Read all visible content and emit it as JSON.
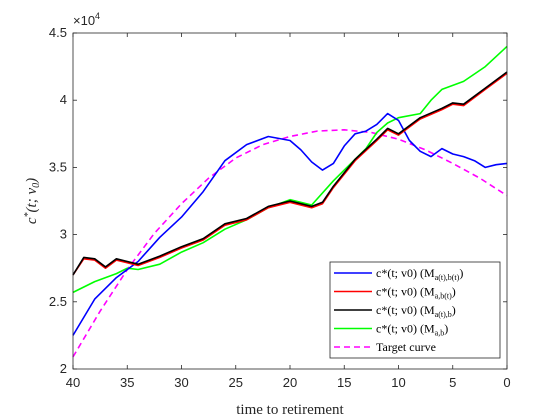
{
  "chart_data": {
    "type": "line",
    "xlabel": "time to retirement",
    "ylabel": "c*(t; v0)",
    "xlim": [
      40,
      0
    ],
    "x_reversed": true,
    "ylim": [
      20000,
      45000
    ],
    "x_ticks": [
      40,
      35,
      30,
      25,
      20,
      15,
      10,
      5,
      0
    ],
    "y_ticks": [
      20000,
      25000,
      30000,
      35000,
      40000,
      45000
    ],
    "y_tick_labels": [
      "2",
      "2.5",
      "3",
      "3.5",
      "4",
      "4.5"
    ],
    "y_multiplier": "×10",
    "y_multiplier_exp": "4",
    "grid": false,
    "legend_position": "bottom-right",
    "series": [
      {
        "name": "c*(t;v0) (M_{a(t),b(t)})",
        "legend_main": "c*(t; v0) (M",
        "legend_sub": "a(t),b(t)",
        "legend_close": ")",
        "color": "#0000ff",
        "dash": "",
        "x": [
          40,
          38,
          36,
          34,
          32,
          30,
          28,
          26,
          24,
          22,
          20,
          19,
          18,
          17,
          16,
          15,
          14,
          13,
          12,
          11,
          10,
          9,
          8,
          7,
          6,
          5,
          4,
          3,
          2,
          1,
          0
        ],
        "values": [
          22500,
          25200,
          26800,
          28000,
          29800,
          31300,
          33200,
          35500,
          36700,
          37300,
          37000,
          36300,
          35400,
          34800,
          35300,
          36600,
          37500,
          37700,
          38200,
          39000,
          38500,
          37000,
          36200,
          35800,
          36400,
          36000,
          35800,
          35500,
          35000,
          35200,
          35300
        ]
      },
      {
        "name": "c*(t;v0) (M_{a,b(t)})",
        "legend_main": "c*(t; v0) (M",
        "legend_sub": "a,b(t)",
        "legend_close": ")",
        "color": "#ff0000",
        "dash": "",
        "x": [
          40,
          39,
          38,
          37,
          36,
          34,
          32,
          30,
          28,
          26,
          24,
          22,
          20,
          18,
          17,
          16,
          14,
          12,
          11,
          10,
          8,
          6,
          5,
          4,
          2,
          0
        ],
        "values": [
          27000,
          28200,
          28100,
          27500,
          28100,
          27700,
          28300,
          29000,
          29600,
          30700,
          31100,
          32000,
          32400,
          32000,
          32300,
          33500,
          35500,
          37000,
          37800,
          37400,
          38600,
          39300,
          39700,
          39600,
          40800,
          42000
        ]
      },
      {
        "name": "c*(t;v0) (M_{a(t),b})",
        "legend_main": "c*(t; v0) (M",
        "legend_sub": "a(t),b",
        "legend_close": ")",
        "color": "#000000",
        "dash": "",
        "x": [
          40,
          39,
          38,
          37,
          36,
          34,
          32,
          30,
          28,
          26,
          24,
          22,
          20,
          18,
          17,
          16,
          14,
          12,
          11,
          10,
          8,
          6,
          5,
          4,
          2,
          0
        ],
        "values": [
          27000,
          28300,
          28200,
          27600,
          28200,
          27800,
          28400,
          29100,
          29700,
          30800,
          31200,
          32100,
          32500,
          32100,
          32400,
          33600,
          35600,
          37100,
          37900,
          37500,
          38700,
          39400,
          39800,
          39700,
          40900,
          42100
        ]
      },
      {
        "name": "c*(t;v0) (M_{a,b})",
        "legend_main": "c*(t; v0) (M",
        "legend_sub": "a,b",
        "legend_close": ")",
        "color": "#00ff00",
        "dash": "",
        "x": [
          40,
          38,
          36,
          35,
          34,
          32,
          30,
          28,
          26,
          24,
          22,
          20,
          18,
          16,
          14,
          13,
          12,
          11,
          10,
          8,
          7,
          6,
          4,
          2,
          0
        ],
        "values": [
          25700,
          26500,
          27100,
          27500,
          27400,
          27800,
          28700,
          29400,
          30400,
          31100,
          32000,
          32600,
          32200,
          34000,
          35600,
          36400,
          37600,
          38300,
          38700,
          39000,
          40000,
          40800,
          41400,
          42500,
          44000
        ]
      },
      {
        "name": "Target curve",
        "legend_main": "Target curve",
        "legend_sub": "",
        "legend_close": "",
        "color": "#ff00ff",
        "dash": "6,4",
        "x": [
          40,
          37.5,
          35,
          32.5,
          30,
          27.5,
          25,
          22.5,
          20,
          17.5,
          15,
          12.5,
          10,
          7.5,
          5,
          2.5,
          0
        ],
        "values": [
          20900,
          24300,
          27400,
          30100,
          32300,
          34200,
          35700,
          36700,
          37300,
          37700,
          37800,
          37600,
          37100,
          36300,
          35300,
          34200,
          32900
        ]
      }
    ]
  }
}
